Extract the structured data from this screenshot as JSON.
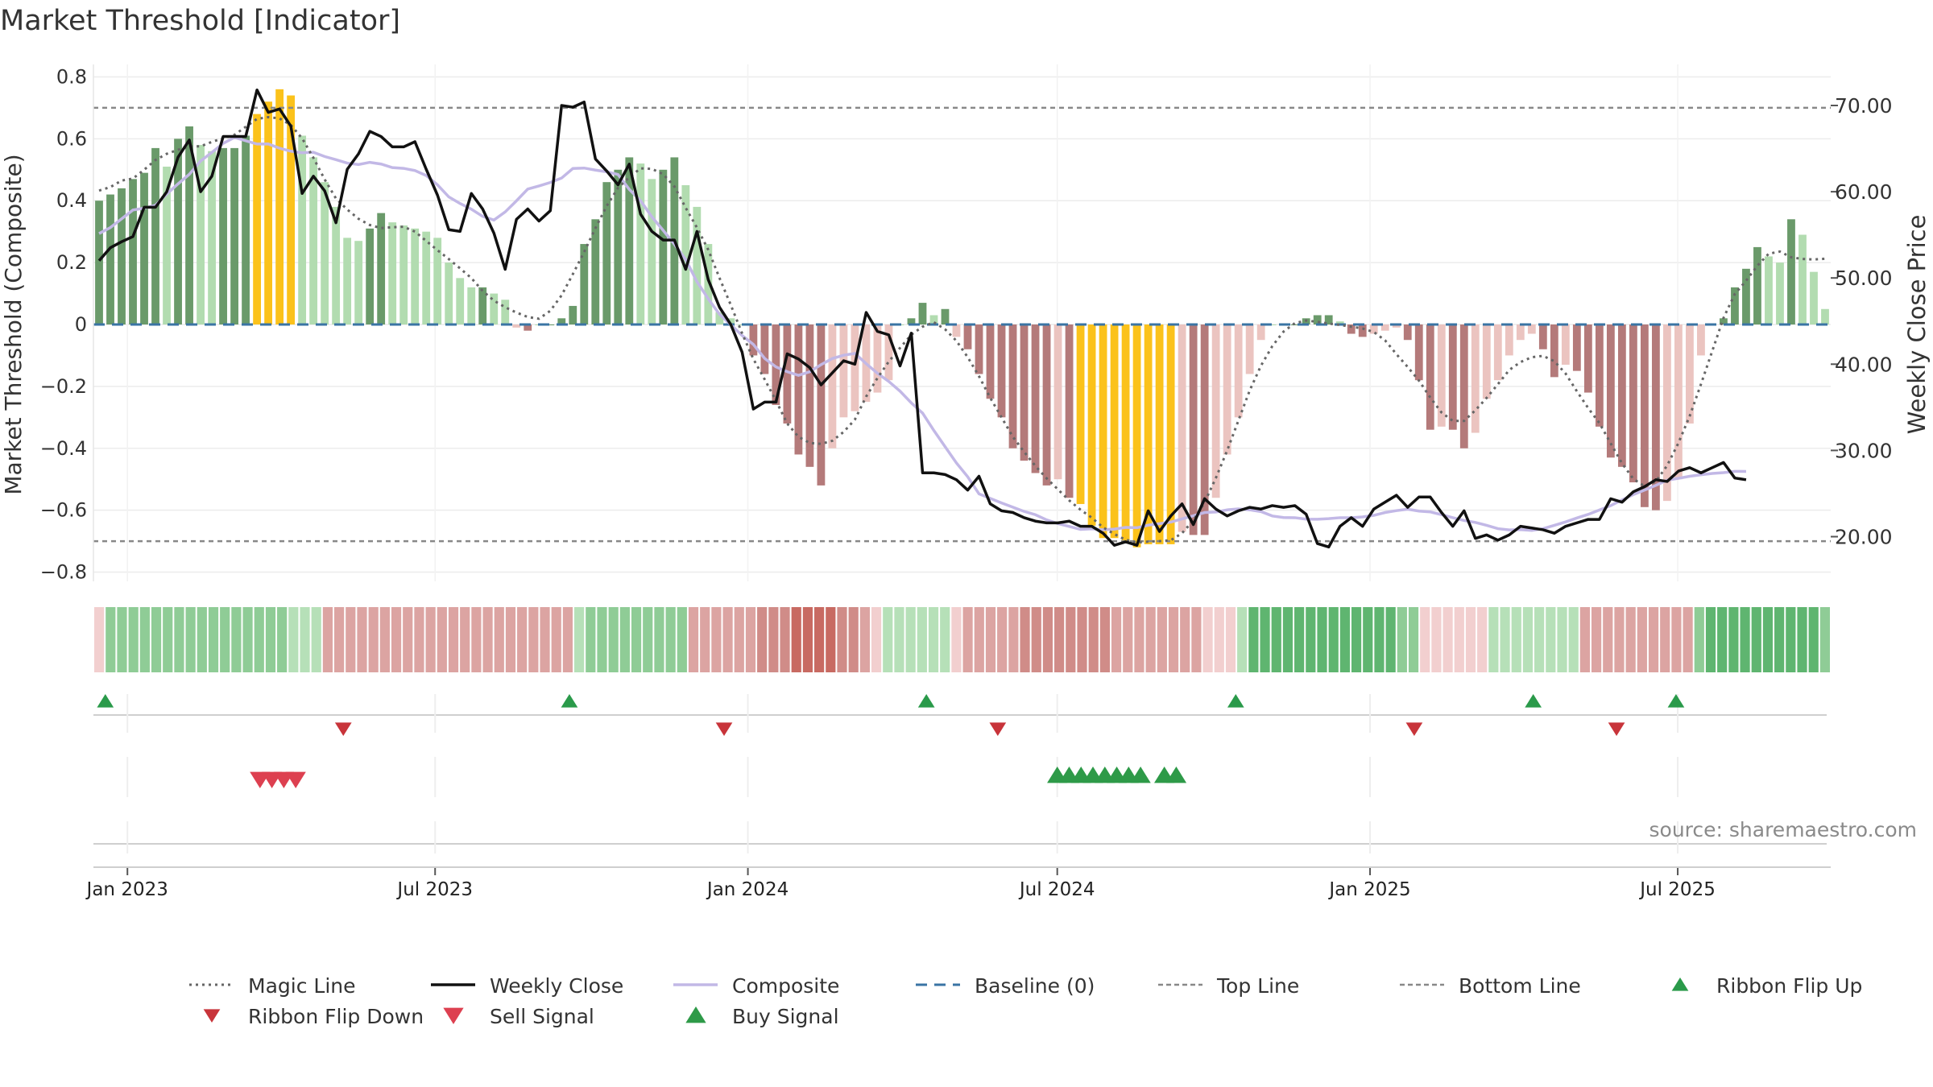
{
  "colors": {
    "bar_up_strong": "#6a9a6a",
    "bar_up_weak": "#b2dcb0",
    "bar_down_strong": "#b47a7a",
    "bar_down_weak": "#ebc4c0",
    "bar_extreme": "#fbc21b",
    "weekly_close": "#111111",
    "magic_line": "#666666",
    "composite": "#c2b8e6",
    "baseline": "#3a74a4",
    "threshold_lines": "#888888",
    "flip_up": "#2a9a4a",
    "flip_down": "#c8343a",
    "sell_signal": "#dd4050",
    "buy_signal": "#2e9a48"
  },
  "chart_data": {
    "type": "bar",
    "title": "Market Threshold [Indicator]",
    "ylabel": "Market Threshold (Composite)",
    "y2label": "Weekly Close Price",
    "ylim": [
      -0.84,
      0.84
    ],
    "y2lim": [
      14.0,
      76.3
    ],
    "yticks": [
      "0.8",
      "0.6",
      "0.4",
      "0.2",
      "0",
      "−0.2",
      "−0.4",
      "−0.6",
      "−0.8"
    ],
    "y2ticks": [
      "70.00",
      "60.00",
      "50.00",
      "40.00",
      "30.00",
      "20.00"
    ],
    "xticks": [
      "Jan 2023",
      "Jul 2023",
      "Jan 2024",
      "Jul 2024",
      "Jan 2025",
      "Jul 2025"
    ],
    "x_start": "2022-12-12",
    "x_end": "2025-09-29",
    "top_line": 0.7,
    "bottom_line": -0.7,
    "baseline": 0,
    "grid": true,
    "source": "source: sharemaestro.com",
    "legend": [
      {
        "label": "Magic Line",
        "kind": "dotted"
      },
      {
        "label": "Weekly Close",
        "kind": "solid"
      },
      {
        "label": "Composite",
        "kind": "lavender"
      },
      {
        "label": "Baseline (0)",
        "kind": "dashed"
      },
      {
        "label": "Top Line",
        "kind": "thin-dash"
      },
      {
        "label": "Bottom Line",
        "kind": "thin-dash"
      },
      {
        "label": "Ribbon Flip Up",
        "kind": "tri-up"
      },
      {
        "label": "Ribbon Flip Down",
        "kind": "tri-down"
      },
      {
        "label": "Sell Signal",
        "kind": "tri-down-big"
      },
      {
        "label": "Buy Signal",
        "kind": "tri-up-big"
      }
    ],
    "series": [
      {
        "name": "Composite",
        "values": [
          0.4,
          0.42,
          0.44,
          0.47,
          0.49,
          0.57,
          0.51,
          0.6,
          0.64,
          0.58,
          0.56,
          0.57,
          0.57,
          0.61,
          0.68,
          0.72,
          0.76,
          0.74,
          0.61,
          0.54,
          0.46,
          0.38,
          0.28,
          0.27,
          0.31,
          0.36,
          0.33,
          0.32,
          0.31,
          0.3,
          0.28,
          0.2,
          0.15,
          0.12,
          0.12,
          0.1,
          0.08,
          -0.01,
          -0.02,
          0.0,
          0.0,
          0.02,
          0.06,
          0.26,
          0.34,
          0.46,
          0.5,
          0.54,
          0.52,
          0.47,
          0.5,
          0.54,
          0.45,
          0.38,
          0.26,
          0.04,
          0.02,
          0.0,
          -0.1,
          -0.16,
          -0.26,
          -0.32,
          -0.42,
          -0.46,
          -0.52,
          -0.4,
          -0.3,
          -0.28,
          -0.25,
          -0.22,
          -0.18,
          0.0,
          0.02,
          0.07,
          0.03,
          0.05,
          -0.04,
          -0.08,
          -0.16,
          -0.24,
          -0.3,
          -0.4,
          -0.44,
          -0.48,
          -0.52,
          -0.5,
          -0.56,
          -0.58,
          -0.65,
          -0.69,
          -0.69,
          -0.7,
          -0.72,
          -0.71,
          -0.71,
          -0.71,
          -0.67,
          -0.68,
          -0.68,
          -0.56,
          -0.42,
          -0.3,
          -0.16,
          -0.05,
          0.0,
          0.0,
          0.0,
          0.02,
          0.03,
          0.03,
          0.01,
          -0.03,
          -0.04,
          -0.03,
          -0.02,
          -0.01,
          -0.05,
          -0.18,
          -0.34,
          -0.33,
          -0.34,
          -0.4,
          -0.35,
          -0.24,
          -0.18,
          -0.1,
          -0.05,
          -0.03,
          -0.08,
          -0.17,
          -0.13,
          -0.15,
          -0.22,
          -0.33,
          -0.43,
          -0.46,
          -0.51,
          -0.59,
          -0.6,
          -0.57,
          -0.5,
          -0.32,
          -0.1,
          0.0,
          0.02,
          0.12,
          0.18,
          0.25,
          0.22,
          0.2,
          0.34,
          0.29,
          0.17,
          0.05
        ]
      },
      {
        "name": "Weekly Close",
        "values": [
          52.0,
          53.5,
          54.2,
          54.8,
          58.2,
          58.2,
          60.0,
          64.0,
          66.0,
          60.0,
          61.8,
          66.4,
          66.4,
          66.4,
          71.8,
          69.2,
          69.6,
          67.6,
          59.8,
          61.8,
          60.1,
          56.4,
          62.6,
          64.4,
          67.0,
          66.4,
          65.2,
          65.2,
          65.8,
          62.6,
          59.6,
          55.6,
          55.4,
          59.8,
          58.0,
          55.2,
          51.0,
          56.8,
          58.0,
          56.6,
          57.8,
          70.0,
          69.8,
          70.4,
          63.8,
          62.4,
          60.8,
          63.2,
          57.4,
          55.4,
          54.4,
          54.4,
          51.0,
          55.4,
          49.8,
          46.6,
          44.6,
          41.4,
          34.8,
          35.6,
          35.6,
          41.2,
          40.6,
          39.6,
          37.6,
          39.0,
          40.4,
          40.0,
          46.0,
          43.8,
          43.4,
          39.8,
          43.6,
          27.4,
          27.4,
          27.2,
          26.6,
          25.4,
          27.0,
          23.8,
          23.0,
          22.8,
          22.2,
          21.8,
          21.6,
          21.6,
          21.8,
          21.2,
          21.2,
          20.4,
          19.0,
          19.4,
          19.0,
          23.0,
          20.6,
          22.4,
          23.8,
          21.4,
          24.4,
          23.2,
          22.4,
          23.0,
          23.4,
          23.2,
          23.6,
          23.4,
          23.6,
          22.6,
          19.2,
          18.8,
          21.2,
          22.2,
          21.2,
          23.2,
          24.0,
          24.8,
          23.4,
          24.6,
          24.6,
          22.8,
          21.2,
          23.0,
          19.8,
          20.2,
          19.6,
          20.2,
          21.2,
          21.0,
          20.8,
          20.4,
          21.2,
          21.6,
          22.0,
          22.0,
          24.4,
          24.0,
          25.2,
          25.8,
          26.6,
          26.4,
          27.6,
          28.0,
          27.4,
          28.0,
          28.6,
          26.8,
          26.6
        ]
      }
    ],
    "extreme_bar_indices": [
      14,
      15,
      16,
      17,
      87,
      88,
      89,
      90,
      91,
      92,
      93,
      94,
      95
    ],
    "ribbon_classes": [
      "dr1",
      "gr2",
      "gr2",
      "gr2",
      "gr2",
      "gr2",
      "gr2",
      "gr2",
      "gr2",
      "gr2",
      "gr2",
      "gr2",
      "gr2",
      "gr2",
      "gr2",
      "gr2",
      "gr2",
      "gr1",
      "gr1",
      "gr1",
      "dr2",
      "dr2",
      "dr2",
      "dr2",
      "dr2",
      "dr2",
      "dr2",
      "dr2",
      "dr2",
      "dr2",
      "dr2",
      "dr2",
      "dr2",
      "dr2",
      "dr2",
      "dr2",
      "dr2",
      "dr2",
      "dr2",
      "dr2",
      "dr2",
      "dr2",
      "gr1",
      "gr2",
      "gr2",
      "gr2",
      "gr2",
      "gr2",
      "gr2",
      "gr2",
      "gr2",
      "gr2",
      "dr2",
      "dr2",
      "dr2",
      "dr2",
      "dr2",
      "dr2",
      "dr3",
      "dr3",
      "dr3",
      "dr4",
      "dr4",
      "dr4",
      "dr4",
      "dr3",
      "dr3",
      "dr2",
      "dr1",
      "gr1",
      "gr1",
      "gr1",
      "gr1",
      "gr1",
      "gr1",
      "dr1",
      "dr2",
      "dr2",
      "dr2",
      "dr2",
      "dr2",
      "dr3",
      "dr3",
      "dr3",
      "dr3",
      "dr3",
      "dr3",
      "dr3",
      "dr3",
      "dr2",
      "dr2",
      "dr2",
      "dr2",
      "dr2",
      "dr2",
      "dr2",
      "dr2",
      "dr1",
      "dr1",
      "dr1",
      "gr1",
      "gr3",
      "gr3",
      "gr3",
      "gr3",
      "gr3",
      "gr3",
      "gr3",
      "gr3",
      "gr3",
      "gr3",
      "gr3",
      "gr3",
      "gr3",
      "gr2",
      "gr2",
      "dr1",
      "dr1",
      "dr1",
      "dr1",
      "dr1",
      "dr1",
      "gr1",
      "gr1",
      "gr1",
      "gr1",
      "gr1",
      "gr1",
      "gr1",
      "gr1",
      "dr2",
      "dr2",
      "dr2",
      "dr2",
      "dr2",
      "dr2",
      "dr2",
      "dr2",
      "dr2",
      "dr2",
      "gr2",
      "gr3",
      "gr3",
      "gr3",
      "gr3",
      "gr3",
      "gr3",
      "gr3",
      "gr3",
      "gr3",
      "gr3",
      "gr2"
    ],
    "ribbon_palette": {
      "gr1": "#b6e0b8",
      "gr2": "#8fcc96",
      "gr3": "#5fb570",
      "dr1": "#f2cfcf",
      "dr2": "#dca4a2",
      "dr3": "#d08c88",
      "dr4": "#c86a62"
    },
    "ribbon_flip_up_dates": [
      "2022-12-19",
      "2023-09-18",
      "2024-04-15",
      "2024-10-14",
      "2025-04-07",
      "2025-06-30"
    ],
    "ribbon_flip_down_dates": [
      "2023-05-08",
      "2023-12-18",
      "2024-05-27",
      "2025-01-27",
      "2025-05-26"
    ],
    "sell_signal_dates": [
      "2023-03-20",
      "2023-03-27",
      "2023-04-03",
      "2023-04-10"
    ],
    "buy_signal_dates": [
      "2024-07-01",
      "2024-07-08",
      "2024-07-15",
      "2024-07-22",
      "2024-07-29",
      "2024-08-05",
      "2024-08-12",
      "2024-08-19",
      "2024-09-02",
      "2024-09-09"
    ]
  }
}
